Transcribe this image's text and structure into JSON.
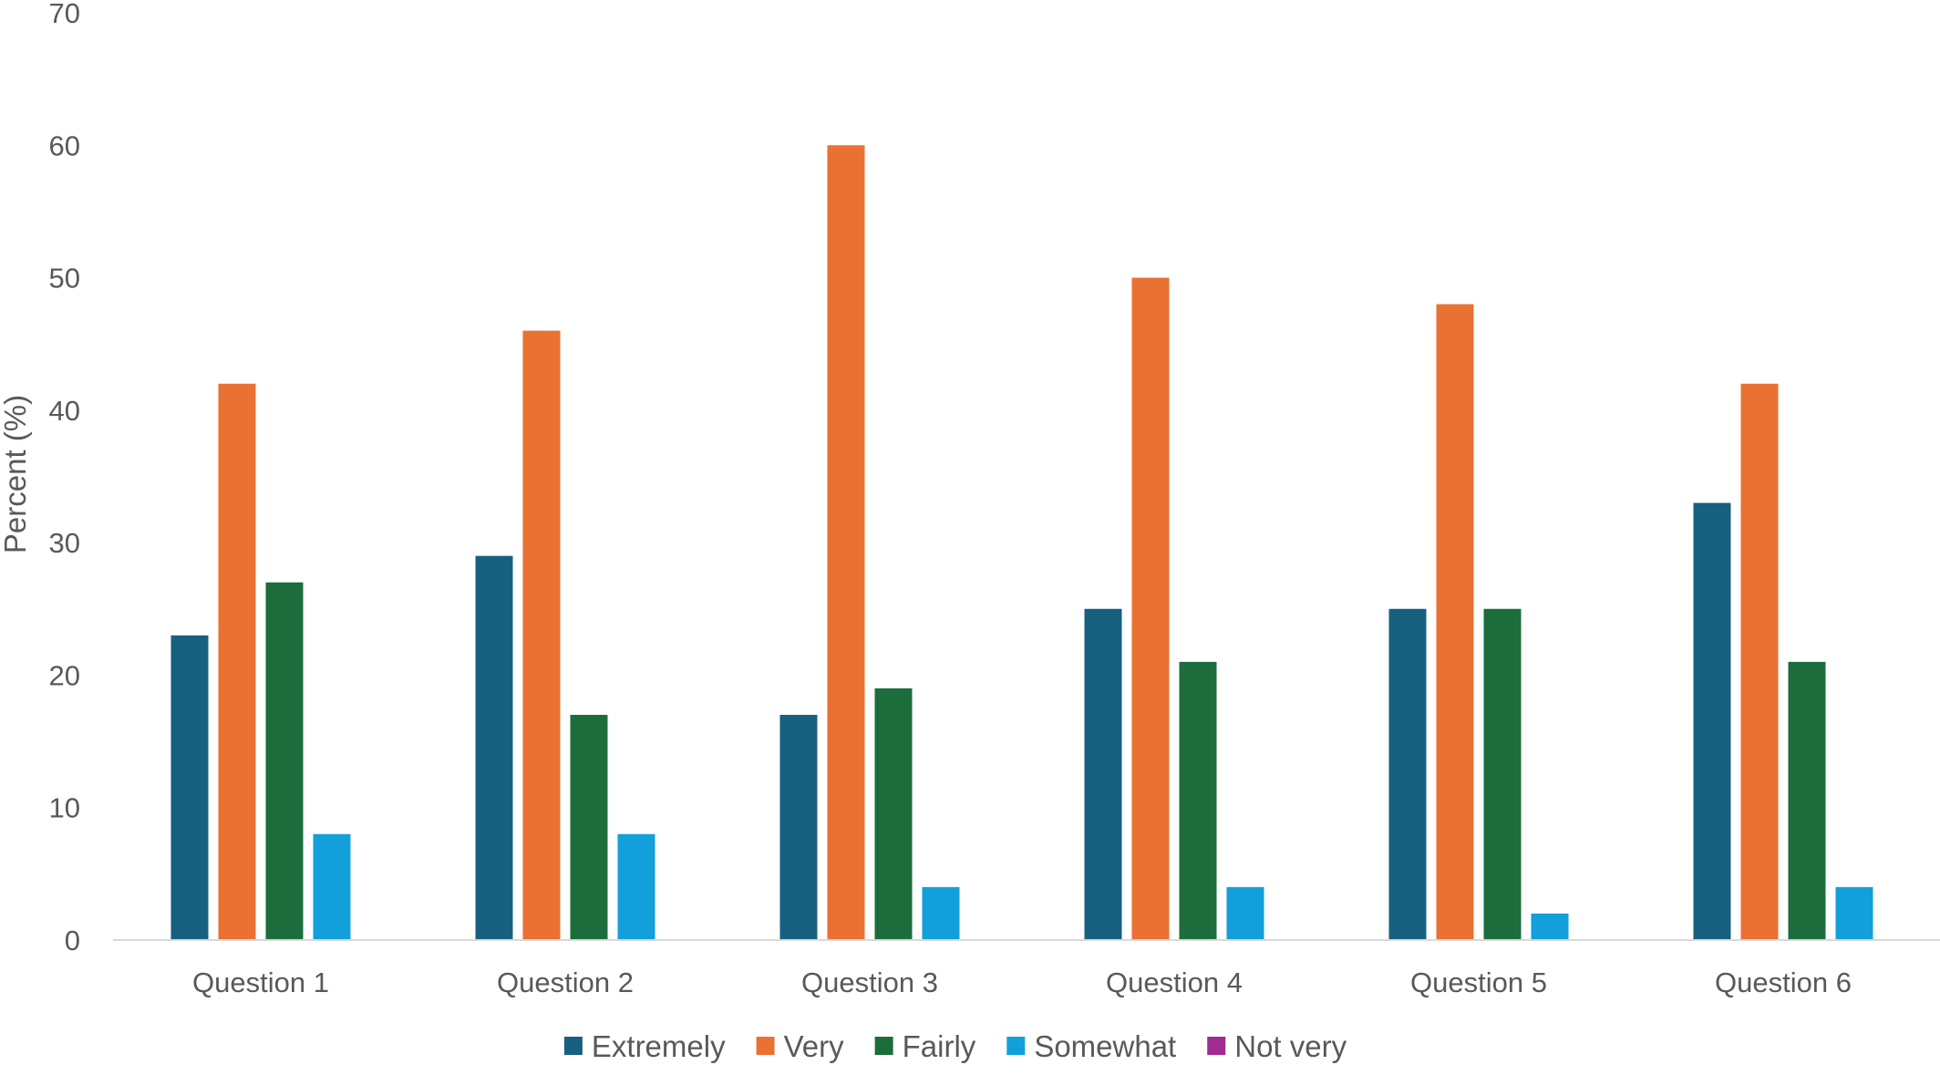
{
  "chart_data": {
    "type": "bar",
    "title": "",
    "xlabel": "",
    "ylabel": "Percent (%)",
    "ylim": [
      0,
      70
    ],
    "yticks": [
      0,
      10,
      20,
      30,
      40,
      50,
      60,
      70
    ],
    "grid": false,
    "legend_position": "bottom",
    "categories": [
      "Question 1",
      "Question 2",
      "Question 3",
      "Question 4",
      "Question 5",
      "Question 6"
    ],
    "series": [
      {
        "name": "Extremely",
        "color": "#17607f",
        "values": [
          23,
          29,
          17,
          25,
          25,
          33
        ]
      },
      {
        "name": "Very",
        "color": "#e97233",
        "values": [
          42,
          46,
          60,
          50,
          48,
          42
        ]
      },
      {
        "name": "Fairly",
        "color": "#1d6d3c",
        "values": [
          27,
          17,
          19,
          21,
          25,
          21
        ]
      },
      {
        "name": "Somewhat",
        "color": "#139fd9",
        "values": [
          8,
          8,
          4,
          4,
          2,
          4
        ]
      },
      {
        "name": "Not very",
        "color": "#a02b93",
        "values": [
          0,
          0,
          0,
          0,
          0,
          0
        ]
      }
    ],
    "axis_color": "#d9d9d9"
  }
}
